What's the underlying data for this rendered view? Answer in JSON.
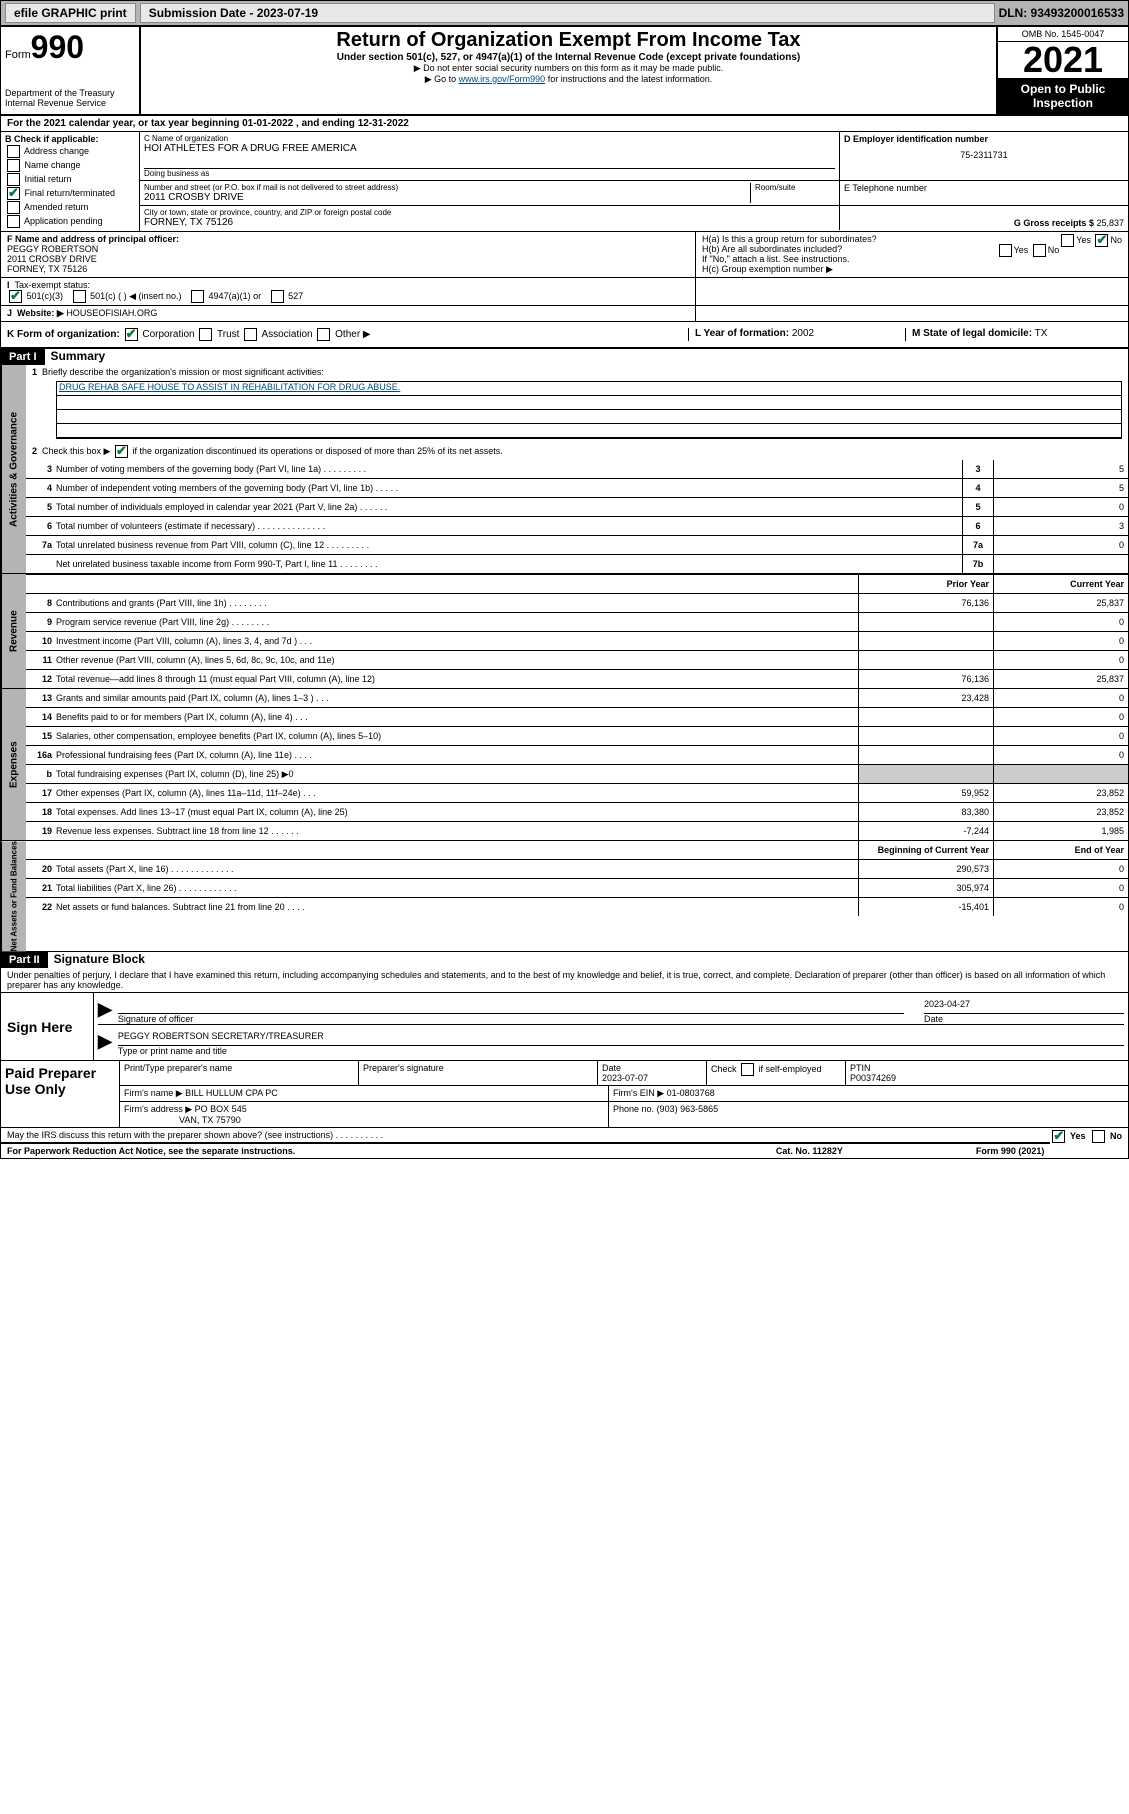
{
  "top": {
    "efile": "efile GRAPHIC print",
    "sub_label": "Submission Date - 2023-07-19",
    "dln": "DLN: 93493200016533"
  },
  "header": {
    "form_word": "Form",
    "form_num": "990",
    "dept": "Department of the Treasury",
    "irs": "Internal Revenue Service",
    "title": "Return of Organization Exempt From Income Tax",
    "sub": "Under section 501(c), 527, or 4947(a)(1) of the Internal Revenue Code (except private foundations)",
    "note1": "▶ Do not enter social security numbers on this form as it may be made public.",
    "note2_pre": "▶ Go to ",
    "note2_link": "www.irs.gov/Form990",
    "note2_post": " for instructions and the latest information.",
    "omb": "OMB No. 1545-0047",
    "year": "2021",
    "otp1": "Open to Public",
    "otp2": "Inspection"
  },
  "A": "For the 2021 calendar year, or tax year beginning 01-01-2022  , and ending 12-31-2022",
  "B": {
    "label": "B Check if applicable:",
    "items": [
      "Address change",
      "Name change",
      "Initial return",
      "Final return/terminated",
      "Amended return",
      "Application pending"
    ],
    "checked_idx": 3
  },
  "C": {
    "name_label": "C Name of organization",
    "name": "HOI ATHLETES FOR A DRUG FREE AMERICA",
    "dba_label": "Doing business as",
    "addr_label": "Number and street (or P.O. box if mail is not delivered to street address)",
    "room_label": "Room/suite",
    "addr": "2011 CROSBY DRIVE",
    "city_label": "City or town, state or province, country, and ZIP or foreign postal code",
    "city": "FORNEY, TX  75126"
  },
  "D": {
    "label": "D Employer identification number",
    "val": "75-2311731"
  },
  "E": {
    "label": "E Telephone number",
    "val": ""
  },
  "G": {
    "label": "G Gross receipts $",
    "val": "25,837"
  },
  "F": {
    "label": "F  Name and address of principal officer:",
    "name": "PEGGY ROBERTSON",
    "addr": "2011 CROSBY DRIVE",
    "city": "FORNEY, TX  75126"
  },
  "H": {
    "a": "H(a)  Is this a group return for subordinates?",
    "a_no": true,
    "b": "H(b)  Are all subordinates included?",
    "b_note": "If \"No,\" attach a list. See instructions.",
    "c": "H(c)  Group exemption number ▶"
  },
  "I": {
    "label": "Tax-exempt status:",
    "opts": [
      "501(c)(3)",
      "501(c) (  ) ◀ (insert no.)",
      "4947(a)(1) or",
      "527"
    ],
    "checked_idx": 0
  },
  "J": {
    "label": "Website: ▶",
    "val": "HOUSEOFISIAH.ORG"
  },
  "K": {
    "label": "K Form of organization:",
    "opts": [
      "Corporation",
      "Trust",
      "Association",
      "Other ▶"
    ],
    "checked_idx": 0
  },
  "L": {
    "label": "L Year of formation:",
    "val": "2002"
  },
  "M": {
    "label": "M State of legal domicile:",
    "val": "TX"
  },
  "part1": {
    "hdr": "Part I",
    "title": "Summary",
    "q1": "Briefly describe the organization's mission or most significant activities:",
    "mission": "DRUG REHAB SAFE HOUSE TO ASSIST IN REHABILITATION FOR DRUG ABUSE.",
    "q2": "Check this box ▶        if the organization discontinued its operations or disposed of more than 25% of its net assets.",
    "col_prior": "Prior Year",
    "col_curr": "Current Year",
    "col_beg": "Beginning of Current Year",
    "col_end": "End of Year",
    "lines_gov": [
      {
        "n": "3",
        "d": "Number of voting members of the governing body (Part VI, line 1a)  .   .   .   .   .   .   .   .   .",
        "box": "3",
        "v": "5"
      },
      {
        "n": "4",
        "d": "Number of independent voting members of the governing body (Part VI, line 1b)  .   .   .   .   .",
        "box": "4",
        "v": "5"
      },
      {
        "n": "5",
        "d": "Total number of individuals employed in calendar year 2021 (Part V, line 2a)   .   .   .   .   .   .",
        "box": "5",
        "v": "0"
      },
      {
        "n": "6",
        "d": "Total number of volunteers (estimate if necessary)   .   .   .   .   .   .   .   .   .   .   .   .   .   .",
        "box": "6",
        "v": "3"
      },
      {
        "n": "7a",
        "d": "Total unrelated business revenue from Part VIII, column (C), line 12   .   .   .   .   .   .   .   .   .",
        "box": "7a",
        "v": "0"
      },
      {
        "n": "",
        "d": "Net unrelated business taxable income from Form 990-T, Part I, line 11   .   .   .   .   .   .   .   .",
        "box": "7b",
        "v": ""
      }
    ],
    "lines_rev": [
      {
        "n": "8",
        "d": "Contributions and grants (Part VIII, line 1h)   .   .   .   .   .   .   .   .",
        "p": "76,136",
        "c": "25,837"
      },
      {
        "n": "9",
        "d": "Program service revenue (Part VIII, line 2g)   .   .   .   .   .   .   .   .",
        "p": "",
        "c": "0"
      },
      {
        "n": "10",
        "d": "Investment income (Part VIII, column (A), lines 3, 4, and 7d )   .   .   .",
        "p": "",
        "c": "0"
      },
      {
        "n": "11",
        "d": "Other revenue (Part VIII, column (A), lines 5, 6d, 8c, 9c, 10c, and 11e)",
        "p": "",
        "c": "0"
      },
      {
        "n": "12",
        "d": "Total revenue—add lines 8 through 11 (must equal Part VIII, column (A), line 12)",
        "p": "76,136",
        "c": "25,837"
      }
    ],
    "lines_exp": [
      {
        "n": "13",
        "d": "Grants and similar amounts paid (Part IX, column (A), lines 1–3 )   .   .   .",
        "p": "23,428",
        "c": "0"
      },
      {
        "n": "14",
        "d": "Benefits paid to or for members (Part IX, column (A), line 4)   .   .   .",
        "p": "",
        "c": "0"
      },
      {
        "n": "15",
        "d": "Salaries, other compensation, employee benefits (Part IX, column (A), lines 5–10)",
        "p": "",
        "c": "0"
      },
      {
        "n": "16a",
        "d": "Professional fundraising fees (Part IX, column (A), line 11e)   .   .   .   .",
        "p": "",
        "c": "0"
      },
      {
        "n": "b",
        "d": "Total fundraising expenses (Part IX, column (D), line 25) ▶0",
        "p": "shade",
        "c": "shade"
      },
      {
        "n": "17",
        "d": "Other expenses (Part IX, column (A), lines 11a–11d, 11f–24e)   .   .   .",
        "p": "59,952",
        "c": "23,852"
      },
      {
        "n": "18",
        "d": "Total expenses. Add lines 13–17 (must equal Part IX, column (A), line 25)",
        "p": "83,380",
        "c": "23,852"
      },
      {
        "n": "19",
        "d": "Revenue less expenses. Subtract line 18 from line 12   .   .   .   .   .   .",
        "p": "-7,244",
        "c": "1,985"
      }
    ],
    "lines_net": [
      {
        "n": "20",
        "d": "Total assets (Part X, line 16)   .   .   .   .   .   .   .   .   .   .   .   .   .",
        "p": "290,573",
        "c": "0"
      },
      {
        "n": "21",
        "d": "Total liabilities (Part X, line 26)   .   .   .   .   .   .   .   .   .   .   .   .",
        "p": "305,974",
        "c": "0"
      },
      {
        "n": "22",
        "d": "Net assets or fund balances. Subtract line 21 from line 20   .   .   .   .",
        "p": "-15,401",
        "c": "0"
      }
    ],
    "side_gov": "Activities & Governance",
    "side_rev": "Revenue",
    "side_exp": "Expenses",
    "side_net": "Net Assets or Fund Balances"
  },
  "part2": {
    "hdr": "Part II",
    "title": "Signature Block",
    "declare": "Under penalties of perjury, I declare that I have examined this return, including accompanying schedules and statements, and to the best of my knowledge and belief, it is true, correct, and complete. Declaration of preparer (other than officer) is based on all information of which preparer has any knowledge.",
    "sign_here": "Sign Here",
    "sig_officer": "Signature of officer",
    "sig_date": "Date",
    "sig_date_val": "2023-04-27",
    "sig_name": "PEGGY ROBERTSON  SECRETARY/TREASURER",
    "sig_name_label": "Type or print name and title",
    "paid": "Paid Preparer Use Only",
    "pp_name_label": "Print/Type preparer's name",
    "pp_sig_label": "Preparer's signature",
    "pp_date_label": "Date",
    "pp_date": "2023-07-07",
    "pp_check": "Check         if self-employed",
    "pp_ptin_label": "PTIN",
    "pp_ptin": "P00374269",
    "firm_name_label": "Firm's name      ▶",
    "firm_name": "BILL HULLUM CPA PC",
    "firm_ein_label": "Firm's EIN ▶",
    "firm_ein": "01-0803768",
    "firm_addr_label": "Firm's address ▶",
    "firm_addr1": "PO BOX 545",
    "firm_addr2": "VAN, TX  75790",
    "firm_phone_label": "Phone no.",
    "firm_phone": "(903) 963-5865",
    "may_irs": "May the IRS discuss this return with the preparer shown above? (see instructions)   .   .   .   .   .   .   .   .   .   .",
    "may_yes": true
  },
  "footer": {
    "left": "For Paperwork Reduction Act Notice, see the separate instructions.",
    "mid": "Cat. No. 11282Y",
    "right": "Form 990 (2021)"
  },
  "yn": {
    "yes": "Yes",
    "no": "No"
  }
}
